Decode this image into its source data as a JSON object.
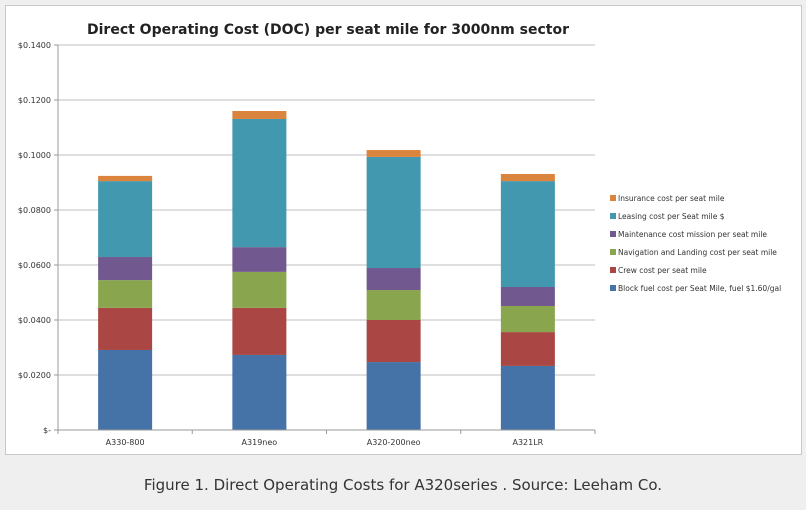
{
  "chart_data": {
    "type": "bar",
    "stacked": true,
    "title": "Direct Operating Cost (DOC)  per seat mile for 3000nm sector",
    "xlabel": "",
    "ylabel": "",
    "ylim": [
      0,
      0.14
    ],
    "yticks": [
      0,
      0.02,
      0.04,
      0.06,
      0.08,
      0.1,
      0.12,
      0.14
    ],
    "ytick_labels": [
      "$-",
      "$0.0200",
      "$0.0400",
      "$0.0600",
      "$0.0800",
      "$0.1000",
      "$0.1200",
      "$0.1400"
    ],
    "grid": true,
    "legend_position": "right",
    "categories": [
      "A330-800",
      "A319neo",
      "A320-200neo",
      "A321LR"
    ],
    "series": [
      {
        "name": "Block fuel cost per Seat Mile, fuel $1.60/gal",
        "color": "#4572a7",
        "values": [
          0.0291,
          0.0273,
          0.0247,
          0.0233
        ]
      },
      {
        "name": "Crew cost per seat mile",
        "color": "#aa4643",
        "values": [
          0.0153,
          0.0171,
          0.0153,
          0.0123
        ]
      },
      {
        "name": "Navigation and Landing cost per seat mile",
        "color": "#89a54e",
        "values": [
          0.0101,
          0.0131,
          0.0109,
          0.0095
        ]
      },
      {
        "name": "Maintenance cost mission per seat mile",
        "color": "#71588f",
        "values": [
          0.0084,
          0.009,
          0.008,
          0.0069
        ]
      },
      {
        "name": "Leasing cost per Seat mile $",
        "color": "#4198af",
        "values": [
          0.0276,
          0.0466,
          0.0404,
          0.0385
        ]
      },
      {
        "name": "Insurance cost per seat mile",
        "color": "#db843d",
        "values": [
          0.0019,
          0.0029,
          0.0025,
          0.0026
        ]
      }
    ]
  },
  "caption": "Figure 1. Direct Operating Costs for A320series . Source: Leeham Co."
}
